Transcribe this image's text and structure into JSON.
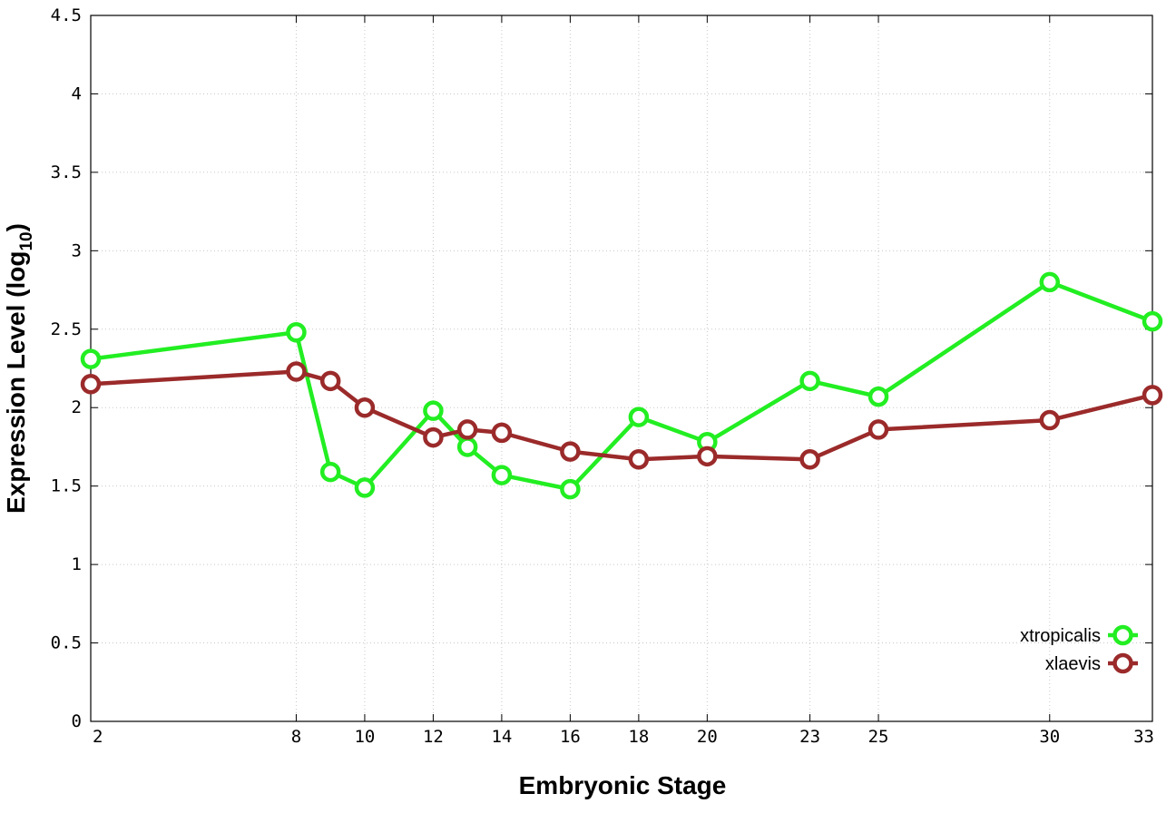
{
  "chart_data": {
    "type": "line",
    "title": "",
    "xlabel": "Embryonic Stage",
    "ylabel": "Expression Level (log",
    "ylabel_sub": "10",
    "ylabel_close": ")",
    "xlim": [
      2,
      33
    ],
    "ylim": [
      0,
      4.5
    ],
    "x_ticks": [
      2,
      8,
      10,
      12,
      14,
      16,
      18,
      20,
      23,
      25,
      30,
      33
    ],
    "x_tick_labels": [
      "2",
      "8",
      "10",
      "12",
      "14",
      "16",
      "18",
      "20",
      "23",
      "25",
      "30",
      "33"
    ],
    "y_ticks": [
      0,
      0.5,
      1,
      1.5,
      2,
      2.5,
      3,
      3.5,
      4,
      4.5
    ],
    "y_tick_labels": [
      "0",
      "0.5",
      "1",
      "1.5",
      "2",
      "2.5",
      "3",
      "3.5",
      "4",
      "4.5"
    ],
    "grid": true,
    "legend_position": "bottom-right",
    "series": [
      {
        "name": "xtropicalis",
        "color": "#22ee22",
        "marker": "circle",
        "x": [
          2,
          8,
          9,
          10,
          12,
          13,
          14,
          16,
          18,
          20,
          23,
          25,
          30,
          33
        ],
        "y": [
          2.31,
          2.48,
          1.59,
          1.49,
          1.98,
          1.75,
          1.57,
          1.48,
          1.94,
          1.78,
          2.17,
          2.07,
          2.8,
          2.55
        ]
      },
      {
        "name": "xlaevis",
        "color": "#9b2a2a",
        "marker": "circle",
        "x": [
          2,
          8,
          9,
          10,
          12,
          13,
          14,
          16,
          18,
          20,
          23,
          25,
          30,
          33
        ],
        "y": [
          2.15,
          2.23,
          2.17,
          2.0,
          1.81,
          1.86,
          1.84,
          1.72,
          1.67,
          1.69,
          1.67,
          1.86,
          1.92,
          2.08
        ]
      }
    ]
  }
}
